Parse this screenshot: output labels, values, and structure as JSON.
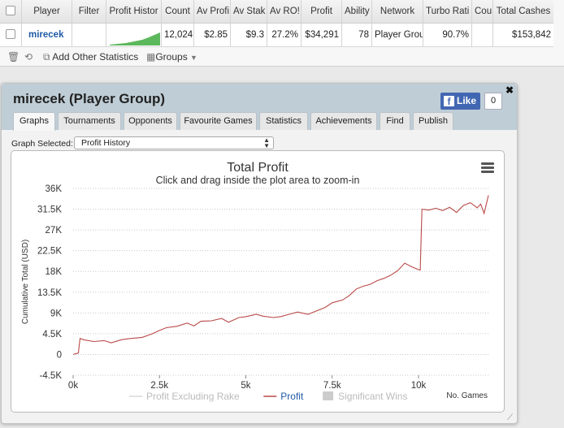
{
  "table": {
    "headers": [
      "Player",
      "Filter",
      "Profit Histor",
      "Count",
      "Av Profi",
      "Av Stak",
      "Av RO!",
      "Profit",
      "Ability",
      "Network",
      "Turbo Rati",
      "Cou",
      "Total Cashes"
    ],
    "row": {
      "player": "mirecek",
      "filter": "",
      "count": "12,024",
      "av_profit": "$2.85",
      "av_stake": "$9.3",
      "av_roi": "27.2%",
      "profit": "$34,291",
      "ability": "78",
      "network": "Player Group",
      "turbo_ratio": "90.7%",
      "country": "",
      "total_cashes": "$153,842"
    },
    "sparkline_color": "#5cb85c"
  },
  "toolbar": {
    "add_stats_label": "Add Other Statistics",
    "groups_label": "Groups"
  },
  "panel": {
    "title": "mirecek (Player Group)",
    "like_label": "Like",
    "like_count": "0",
    "tabs": [
      "Graphs",
      "Tournaments",
      "Opponents",
      "Favourite Games",
      "Statistics",
      "Achievements",
      "Find",
      "Publish"
    ],
    "active_tab": "Graphs",
    "graph_select_label": "Graph Selected:",
    "graph_select_value": "Profit History"
  },
  "chart_data": {
    "type": "line",
    "title": "Total Profit",
    "subtitle": "Click and drag inside the plot area to zoom-in",
    "ylabel": "Cumulative Total (USD)",
    "xlabel": "No. Games",
    "ylim": [
      -4500,
      36000
    ],
    "xlim": [
      0,
      12024
    ],
    "y_ticks": [
      "-4.5K",
      "0",
      "4.5K",
      "9K",
      "13.5K",
      "18K",
      "22.5K",
      "27K",
      "31.5K",
      "36K"
    ],
    "x_ticks": [
      "0k",
      "2.5k",
      "5k",
      "7.5k",
      "10k"
    ],
    "grid": true,
    "legend_placement": "bottom",
    "legend": [
      {
        "name": "Profit Excluding Rake",
        "color": "#d8d8d8",
        "symbol": "line"
      },
      {
        "name": "Profit",
        "color": "#b94a48",
        "symbol": "line"
      },
      {
        "name": "Significant Wins",
        "color": "#cccccc",
        "symbol": "box"
      }
    ],
    "series": [
      {
        "name": "Profit",
        "color": "#b94a48",
        "x": [
          0,
          150,
          200,
          300,
          600,
          900,
          1100,
          1400,
          1600,
          2000,
          2300,
          2500,
          2700,
          3000,
          3300,
          3500,
          3700,
          4000,
          4300,
          4500,
          4800,
          5000,
          5300,
          5500,
          5800,
          6000,
          6300,
          6500,
          6800,
          7000,
          7300,
          7500,
          7800,
          8000,
          8200,
          8400,
          8600,
          8800,
          9000,
          9200,
          9400,
          9600,
          9800,
          10000,
          10050,
          10100,
          10300,
          10500,
          10700,
          10900,
          11100,
          11300,
          11500,
          11700,
          11800,
          11900,
          12024
        ],
        "y": [
          0,
          300,
          3500,
          3200,
          2800,
          3000,
          2500,
          3200,
          3400,
          3700,
          4500,
          5200,
          5800,
          6100,
          6800,
          6200,
          7200,
          7300,
          7800,
          7000,
          8000,
          8200,
          8700,
          8300,
          8000,
          8200,
          8800,
          9200,
          8700,
          9300,
          10200,
          11200,
          11800,
          12800,
          14200,
          14800,
          15200,
          16000,
          16500,
          17200,
          18200,
          19800,
          19000,
          18400,
          18300,
          31500,
          31300,
          31700,
          31200,
          31900,
          30800,
          32300,
          32900,
          31800,
          32600,
          30600,
          34500
        ]
      }
    ]
  }
}
